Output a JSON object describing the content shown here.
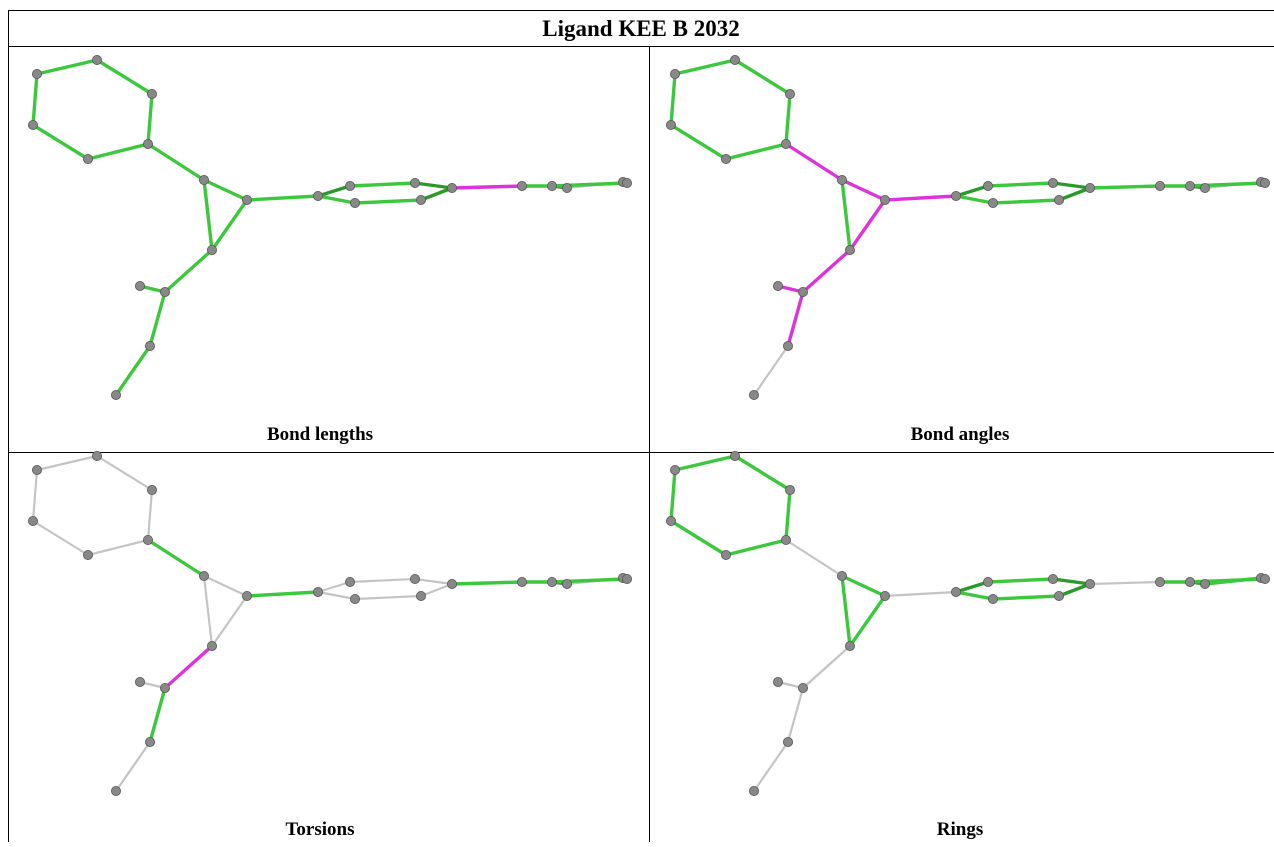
{
  "header": {
    "title": "Ligand KEE B 2032"
  },
  "panels": [
    {
      "caption": "Bond lengths"
    },
    {
      "caption": "Bond angles"
    },
    {
      "caption": "Torsions"
    },
    {
      "caption": "Rings"
    }
  ]
}
